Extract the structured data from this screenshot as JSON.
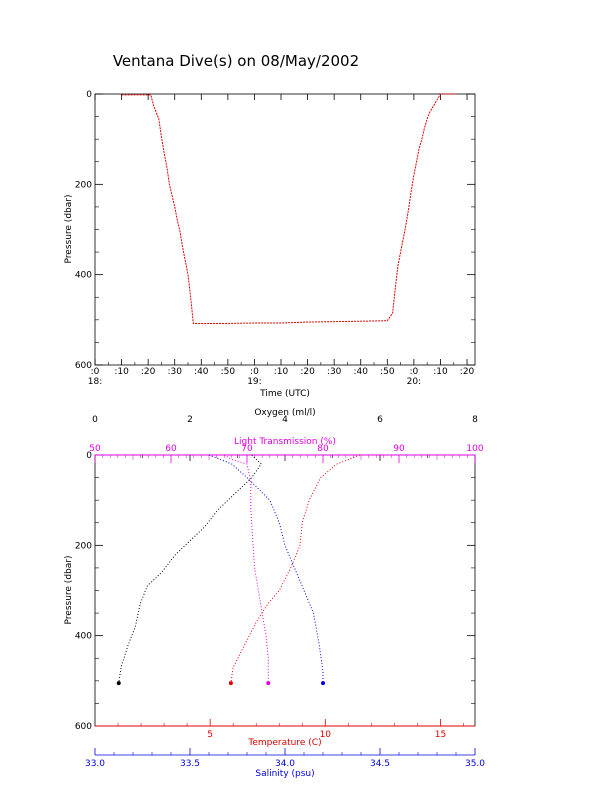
{
  "title": "Ventana Dive(s) on 08/May/2002",
  "colors": {
    "axis": "#000000",
    "depth_trace": "#e00000",
    "oxygen": "#000000",
    "light_transmission": "#e000e0",
    "temperature": "#e00000",
    "salinity": "#0000e0"
  },
  "chart_data": [
    {
      "type": "line",
      "title": "Ventana Dive(s) on 08/May/2002",
      "xlabel": "Time (UTC)",
      "ylabel": "Pressure (dbar)",
      "x_ticks": [
        ":0",
        ":10",
        ":20",
        ":30",
        ":40",
        ":50",
        ":0",
        ":10",
        ":20",
        ":30",
        ":40",
        ":50",
        ":0",
        ":10",
        ":20"
      ],
      "x_hour_labels": [
        {
          "label": "18:",
          "minutes": 0
        },
        {
          "label": "19:",
          "minutes": 60
        },
        {
          "label": "20:",
          "minutes": 120
        }
      ],
      "xlim_minutes": [
        0,
        143
      ],
      "ylim": [
        600,
        0
      ],
      "y_ticks": [
        "0",
        "200",
        "400",
        "600"
      ],
      "series": [
        {
          "x_minutes": [
            10,
            21,
            22,
            24,
            25,
            26,
            27,
            28,
            30,
            31,
            32,
            33,
            34,
            35,
            36,
            37,
            40,
            50,
            60,
            70,
            80,
            90,
            100,
            110,
            112,
            113,
            114,
            115,
            116,
            117,
            118,
            119,
            120,
            121,
            122,
            123,
            124,
            125,
            126,
            128,
            130,
            136
          ],
          "y": [
            2,
            2,
            25,
            55,
            95,
            130,
            160,
            200,
            250,
            280,
            305,
            340,
            370,
            400,
            450,
            508,
            508,
            508,
            507,
            507,
            505,
            504,
            503,
            502,
            485,
            430,
            380,
            350,
            320,
            290,
            255,
            215,
            180,
            150,
            120,
            100,
            75,
            55,
            40,
            20,
            0,
            0
          ]
        }
      ]
    },
    {
      "type": "line",
      "ylabel": "Pressure (dbar)",
      "ylim": [
        600,
        0
      ],
      "y_ticks": [
        "0",
        "200",
        "400",
        "600"
      ],
      "axes": {
        "oxygen": {
          "label": "Oxygen (ml/l)",
          "range": [
            0,
            8
          ],
          "ticks": [
            "0",
            "2",
            "4",
            "6",
            "8"
          ]
        },
        "light_transmission": {
          "label": "Light Transmission (%)",
          "range": [
            50,
            100
          ],
          "ticks": [
            "50",
            "60",
            "70",
            "80",
            "90",
            "100"
          ]
        },
        "temperature": {
          "label": "Temperature (C)",
          "range": [
            0,
            16.5
          ],
          "ticks": [
            "5",
            "10",
            "15"
          ]
        },
        "salinity": {
          "label": "Salinity (psu)",
          "range": [
            33.0,
            35.0
          ],
          "ticks": [
            "33.0",
            "33.5",
            "34.0",
            "34.5",
            "35.0"
          ]
        }
      },
      "series": [
        {
          "axis": "oxygen",
          "x": [
            3.3,
            3.5,
            3.3,
            3.0,
            2.6,
            2.3,
            2.0,
            1.7,
            1.4,
            1.1,
            0.95,
            0.85,
            0.7,
            0.55,
            0.5
          ],
          "y": [
            0,
            20,
            50,
            80,
            120,
            160,
            190,
            220,
            260,
            290,
            330,
            380,
            420,
            470,
            505
          ]
        },
        {
          "axis": "light_transmission",
          "x": [
            67,
            68,
            70,
            70.5,
            70.5,
            70.8,
            71,
            71.5,
            72,
            72.5,
            72.8,
            72.8
          ],
          "y": [
            0,
            10,
            20,
            60,
            120,
            200,
            250,
            300,
            350,
            400,
            450,
            505
          ]
        },
        {
          "axis": "temperature",
          "x": [
            11.5,
            10.5,
            9.8,
            9.3,
            9.0,
            8.9,
            8.5,
            8.0,
            7.5,
            7.0,
            6.5,
            6.0,
            5.9
          ],
          "y": [
            0,
            20,
            50,
            100,
            150,
            200,
            250,
            300,
            330,
            370,
            420,
            470,
            505
          ]
        },
        {
          "axis": "salinity",
          "x": [
            33.6,
            33.72,
            33.8,
            33.92,
            33.97,
            34.0,
            34.05,
            34.1,
            34.15,
            34.18,
            34.2,
            34.2
          ],
          "y": [
            0,
            20,
            50,
            100,
            150,
            200,
            250,
            300,
            350,
            420,
            480,
            505
          ]
        }
      ]
    }
  ]
}
